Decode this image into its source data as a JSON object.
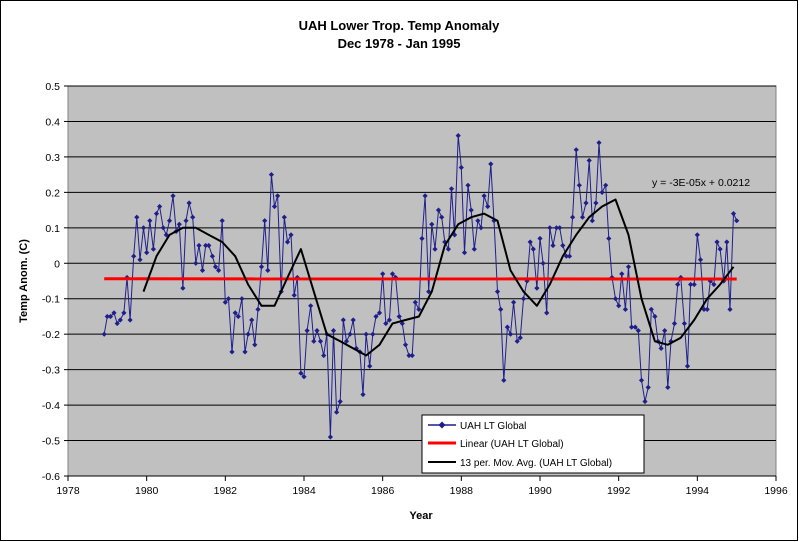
{
  "chart_data": {
    "type": "line",
    "title": "UAH Lower Trop. Temp Anomaly",
    "subtitle": "Dec 1978 - Jan 1995",
    "xlabel": "Year",
    "ylabel": "Temp Anom. (C)",
    "xlim": [
      1978,
      1996
    ],
    "ylim": [
      -0.6,
      0.5
    ],
    "x_ticks": [
      "1978",
      "1980",
      "1982",
      "1984",
      "1986",
      "1988",
      "1990",
      "1992",
      "1994",
      "1996"
    ],
    "y_ticks": [
      "0.5",
      "0.4",
      "0.3",
      "0.2",
      "0.1",
      "0",
      "-0.1",
      "-0.2",
      "-0.3",
      "-0.4",
      "-0.5",
      "-0.6"
    ],
    "grid": "horizontal",
    "plot_background": "#c0c0c0",
    "annotation": "y = -3E-05x + 0.0212",
    "legend": {
      "placement": "bottom-right",
      "entries": [
        "UAH LT Global",
        "Linear (UAH LT Global)",
        "13 per. Mov. Avg. (UAH LT Global)"
      ]
    },
    "series": [
      {
        "name": "UAH LT Global",
        "color": "#1f1f8c",
        "marker": "diamond",
        "x": [
          1978.92,
          1979.0,
          1979.08,
          1979.17,
          1979.25,
          1979.33,
          1979.42,
          1979.5,
          1979.58,
          1979.67,
          1979.75,
          1979.83,
          1979.92,
          1980.0,
          1980.08,
          1980.17,
          1980.25,
          1980.33,
          1980.42,
          1980.5,
          1980.58,
          1980.67,
          1980.75,
          1980.83,
          1980.92,
          1981.0,
          1981.08,
          1981.17,
          1981.25,
          1981.33,
          1981.42,
          1981.5,
          1981.58,
          1981.67,
          1981.75,
          1981.83,
          1981.92,
          1982.0,
          1982.08,
          1982.17,
          1982.25,
          1982.33,
          1982.42,
          1982.5,
          1982.58,
          1982.67,
          1982.75,
          1982.83,
          1982.92,
          1983.0,
          1983.08,
          1983.17,
          1983.25,
          1983.33,
          1983.42,
          1983.5,
          1983.58,
          1983.67,
          1983.75,
          1983.83,
          1983.92,
          1984.0,
          1984.08,
          1984.17,
          1984.25,
          1984.33,
          1984.42,
          1984.5,
          1984.58,
          1984.67,
          1984.75,
          1984.83,
          1984.92,
          1985.0,
          1985.08,
          1985.17,
          1985.25,
          1985.33,
          1985.42,
          1985.5,
          1985.58,
          1985.67,
          1985.75,
          1985.83,
          1985.92,
          1986.0,
          1986.08,
          1986.17,
          1986.25,
          1986.33,
          1986.42,
          1986.5,
          1986.58,
          1986.67,
          1986.75,
          1986.83,
          1986.92,
          1987.0,
          1987.08,
          1987.17,
          1987.25,
          1987.33,
          1987.42,
          1987.5,
          1987.58,
          1987.67,
          1987.75,
          1987.83,
          1987.92,
          1988.0,
          1988.08,
          1988.17,
          1988.25,
          1988.33,
          1988.42,
          1988.5,
          1988.58,
          1988.67,
          1988.75,
          1988.83,
          1988.92,
          1989.0,
          1989.08,
          1989.17,
          1989.25,
          1989.33,
          1989.42,
          1989.5,
          1989.58,
          1989.67,
          1989.75,
          1989.83,
          1989.92,
          1990.0,
          1990.08,
          1990.17,
          1990.25,
          1990.33,
          1990.42,
          1990.5,
          1990.58,
          1990.67,
          1990.75,
          1990.83,
          1990.92,
          1991.0,
          1991.08,
          1991.17,
          1991.25,
          1991.33,
          1991.42,
          1991.5,
          1991.58,
          1991.67,
          1991.75,
          1991.83,
          1991.92,
          1992.0,
          1992.08,
          1992.17,
          1992.25,
          1992.33,
          1992.42,
          1992.5,
          1992.58,
          1992.67,
          1992.75,
          1992.83,
          1992.92,
          1993.0,
          1993.08,
          1993.17,
          1993.25,
          1993.33,
          1993.42,
          1993.5,
          1993.58,
          1993.67,
          1993.75,
          1993.83,
          1993.92,
          1994.0,
          1994.08,
          1994.17,
          1994.25,
          1994.33,
          1994.42,
          1994.5,
          1994.58,
          1994.67,
          1994.75,
          1994.83,
          1994.92,
          1995.0
        ],
        "y": [
          -0.2,
          -0.15,
          -0.15,
          -0.14,
          -0.17,
          -0.16,
          -0.14,
          -0.04,
          -0.16,
          0.02,
          0.13,
          0.01,
          0.1,
          0.03,
          0.12,
          0.04,
          0.14,
          0.16,
          0.1,
          0.08,
          0.12,
          0.19,
          0.09,
          0.11,
          -0.07,
          0.12,
          0.17,
          0.13,
          0.0,
          0.05,
          -0.02,
          0.05,
          0.05,
          0.02,
          -0.01,
          -0.02,
          0.12,
          -0.11,
          -0.1,
          -0.25,
          -0.14,
          -0.15,
          -0.1,
          -0.25,
          -0.2,
          -0.16,
          -0.23,
          -0.13,
          -0.01,
          0.12,
          -0.02,
          0.25,
          0.16,
          0.19,
          -0.08,
          0.13,
          0.06,
          0.08,
          -0.09,
          -0.04,
          -0.31,
          -0.32,
          -0.19,
          -0.12,
          -0.22,
          -0.19,
          -0.22,
          -0.26,
          -0.2,
          -0.49,
          -0.19,
          -0.42,
          -0.39,
          -0.16,
          -0.22,
          -0.2,
          -0.16,
          -0.24,
          -0.25,
          -0.37,
          -0.2,
          -0.29,
          -0.2,
          -0.15,
          -0.14,
          -0.03,
          -0.17,
          -0.16,
          -0.03,
          -0.04,
          -0.15,
          -0.17,
          -0.23,
          -0.26,
          -0.26,
          -0.11,
          -0.13,
          0.07,
          0.19,
          -0.08,
          0.11,
          0.04,
          0.15,
          0.13,
          0.06,
          0.04,
          0.21,
          0.08,
          0.36,
          0.27,
          0.03,
          0.22,
          0.15,
          0.04,
          0.12,
          0.1,
          0.19,
          0.16,
          0.28,
          0.12,
          -0.08,
          -0.13,
          -0.33,
          -0.18,
          -0.2,
          -0.11,
          -0.22,
          -0.21,
          -0.1,
          -0.05,
          0.06,
          0.04,
          -0.07,
          0.07,
          0.0,
          -0.14,
          0.1,
          0.05,
          0.1,
          0.1,
          0.05,
          0.02,
          0.02,
          0.13,
          0.32,
          0.22,
          0.13,
          0.17,
          0.29,
          0.12,
          0.17,
          0.34,
          0.2,
          0.22,
          0.07,
          -0.04,
          -0.1,
          -0.12,
          -0.03,
          -0.13,
          -0.01,
          -0.18,
          -0.18,
          -0.19,
          -0.33,
          -0.39,
          -0.35,
          -0.13,
          -0.15,
          -0.22,
          -0.24,
          -0.19,
          -0.35,
          -0.22,
          -0.17,
          -0.06,
          -0.04,
          -0.17,
          -0.29,
          -0.06,
          -0.06,
          0.08,
          0.01,
          -0.13,
          -0.13,
          -0.05,
          -0.06,
          0.06,
          0.04,
          -0.05,
          0.06,
          -0.13,
          0.14,
          0.12
        ]
      },
      {
        "name": "Linear (UAH LT Global)",
        "color": "#ff0000",
        "x": [
          1978.92,
          1995.0
        ],
        "y": [
          -0.0438,
          -0.0443
        ]
      },
      {
        "name": "13 per. Mov. Avg. (UAH LT Global)",
        "color": "#000000",
        "x": [
          1979.92,
          1980.25,
          1980.58,
          1980.92,
          1981.25,
          1981.58,
          1981.92,
          1982.25,
          1982.58,
          1982.92,
          1983.25,
          1983.58,
          1983.92,
          1984.25,
          1984.58,
          1984.92,
          1985.25,
          1985.58,
          1985.92,
          1986.25,
          1986.58,
          1986.92,
          1987.25,
          1987.58,
          1987.92,
          1988.25,
          1988.58,
          1988.92,
          1989.25,
          1989.58,
          1989.92,
          1990.25,
          1990.58,
          1990.92,
          1991.25,
          1991.58,
          1991.92,
          1992.25,
          1992.58,
          1992.92,
          1993.25,
          1993.58,
          1993.92,
          1994.25,
          1994.58,
          1994.92
        ],
        "y": [
          -0.08,
          0.02,
          0.08,
          0.1,
          0.1,
          0.08,
          0.06,
          0.02,
          -0.06,
          -0.12,
          -0.12,
          -0.04,
          0.04,
          -0.08,
          -0.2,
          -0.22,
          -0.24,
          -0.26,
          -0.23,
          -0.17,
          -0.16,
          -0.15,
          -0.08,
          0.05,
          0.11,
          0.13,
          0.14,
          0.12,
          -0.02,
          -0.08,
          -0.12,
          -0.06,
          0.02,
          0.08,
          0.13,
          0.16,
          0.18,
          0.08,
          -0.1,
          -0.22,
          -0.23,
          -0.21,
          -0.16,
          -0.1,
          -0.06,
          -0.01
        ]
      }
    ]
  }
}
